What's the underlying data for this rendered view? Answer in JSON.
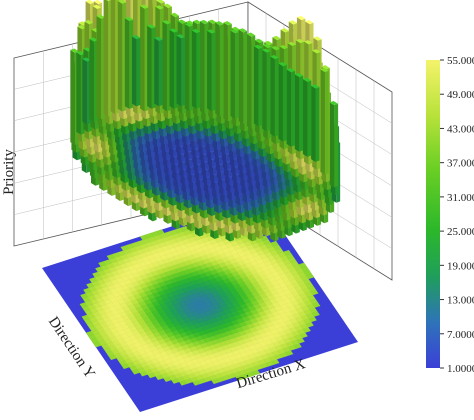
{
  "chart_data": {
    "type": "bar3d",
    "xlabel": "Direction X",
    "ylabel": "Direction Y",
    "zlabel": "Priority",
    "projection_surface": "heatmap",
    "colorbar": {
      "ticks": [
        "55.000",
        "49.000",
        "43.000",
        "37.000",
        "31.000",
        "25.000",
        "19.000",
        "13.000",
        "7.0000",
        "1.0000"
      ],
      "range": [
        1,
        55
      ],
      "colors": [
        "#3b3fd8",
        "#2e74b8",
        "#1f9f5a",
        "#2cb82a",
        "#6ccf24",
        "#b8e23a",
        "#f4f36a"
      ],
      "placement": "right"
    },
    "grid": true,
    "description_values": {
      "grid_size": 24,
      "center_low": 1,
      "ring_high": 55
    }
  }
}
